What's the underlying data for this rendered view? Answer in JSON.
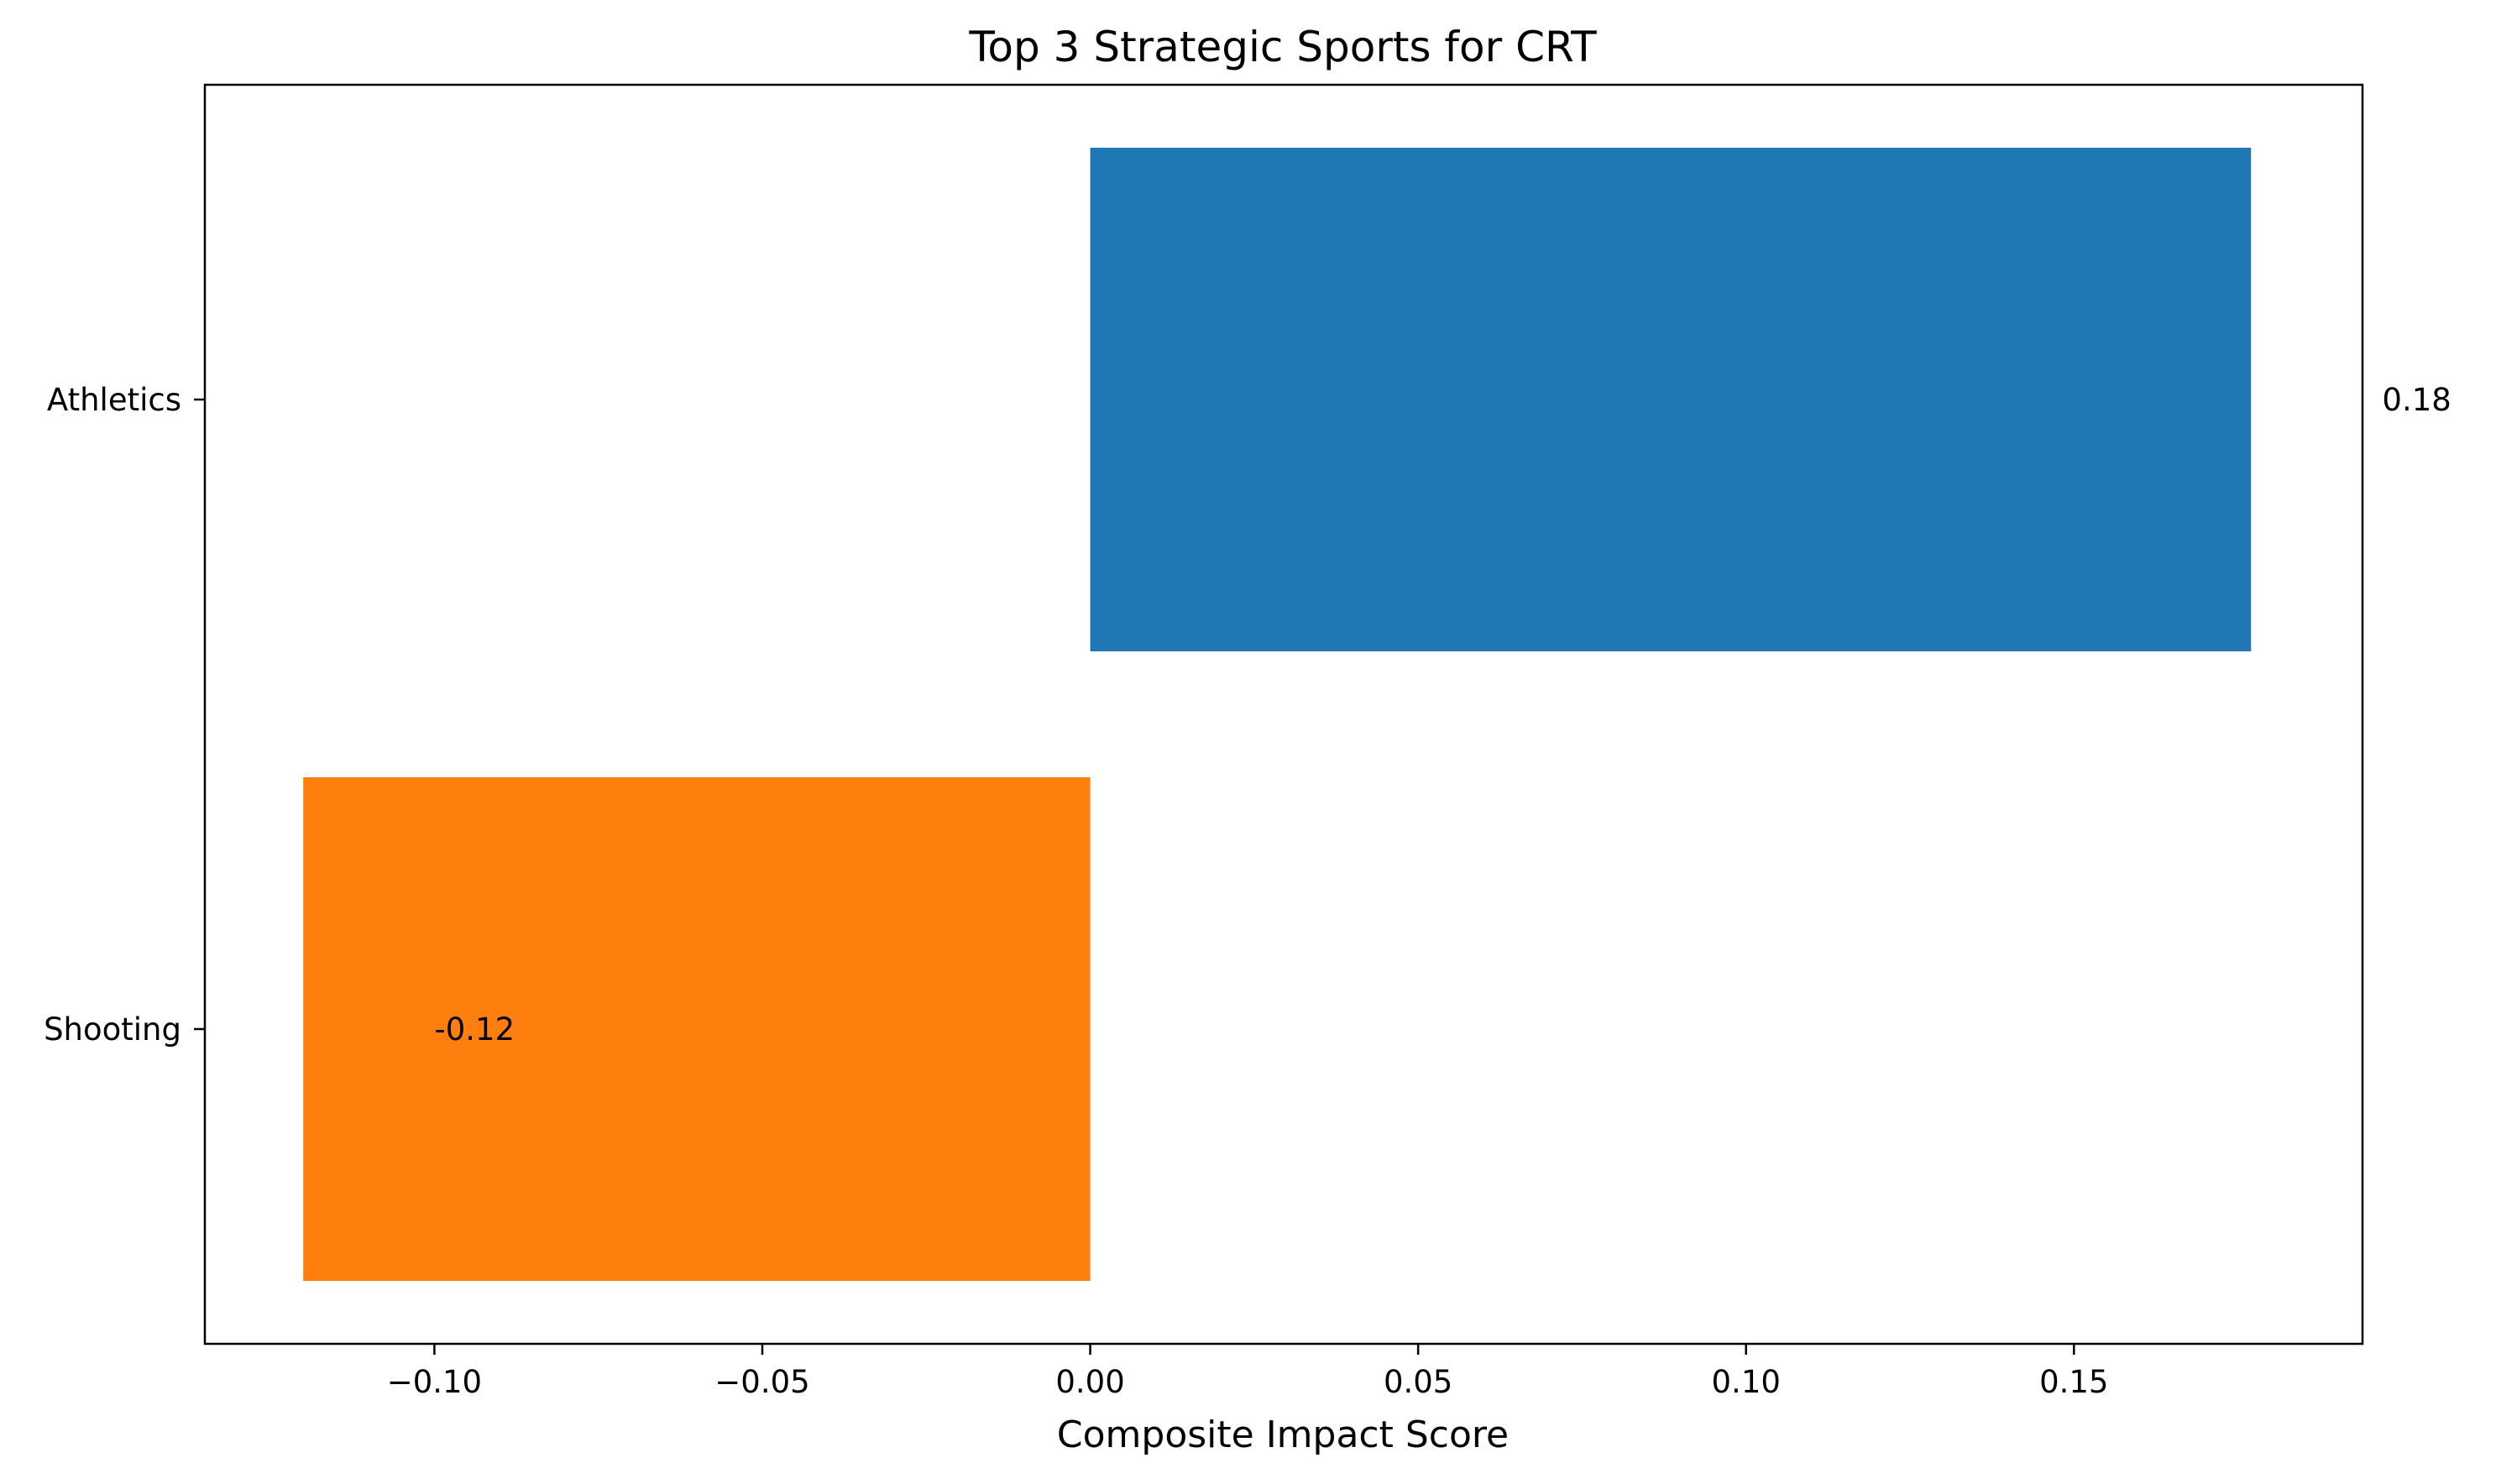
{
  "chart_data": {
    "type": "bar",
    "orientation": "horizontal",
    "title": "Top 3 Strategic Sports for CRT",
    "xlabel": "Composite Impact Score",
    "ylabel": "",
    "categories": [
      "Athletics",
      "Shooting"
    ],
    "values": [
      0.177,
      -0.12
    ],
    "data_labels": [
      "0.18",
      "-0.12"
    ],
    "colors": [
      "#1f77b4",
      "#ff7f0e"
    ],
    "xlim": [
      -0.135,
      0.194
    ],
    "xticks": [
      -0.1,
      -0.05,
      0.0,
      0.05,
      0.1,
      0.15
    ],
    "xtick_labels": [
      "−0.10",
      "−0.05",
      "0.00",
      "0.05",
      "0.10",
      "0.15"
    ],
    "grid": false,
    "legend": "none"
  }
}
